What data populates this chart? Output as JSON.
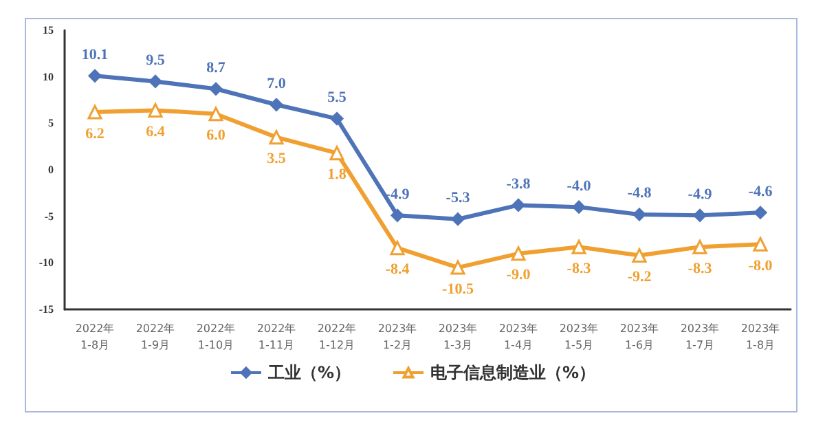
{
  "chart_data": {
    "type": "line",
    "categories": [
      "2022年\n1-8月",
      "2022年\n1-9月",
      "2022年\n1-10月",
      "2022年\n1-11月",
      "2022年\n1-12月",
      "2023年\n1-2月",
      "2023年\n1-3月",
      "2023年\n1-4月",
      "2023年\n1-5月",
      "2023年\n1-6月",
      "2023年\n1-7月",
      "2023年\n1-8月"
    ],
    "series": [
      {
        "name": "工业（%）",
        "color": "#4e73b8",
        "marker": "diamond",
        "values": [
          10.1,
          9.5,
          8.7,
          7.0,
          5.5,
          -4.9,
          -5.3,
          -3.8,
          -4.0,
          -4.8,
          -4.9,
          -4.6
        ],
        "value_labels": [
          "10.1",
          "9.5",
          "8.7",
          "7.0",
          "5.5",
          "-4.9",
          "-5.3",
          "-3.8",
          "-4.0",
          "-4.8",
          "-4.9",
          "-4.6"
        ]
      },
      {
        "name": "电子信息制造业（%）",
        "color": "#f0a030",
        "marker": "triangle",
        "values": [
          6.2,
          6.4,
          6.0,
          3.5,
          1.8,
          -8.4,
          -10.5,
          -9.0,
          -8.3,
          -9.2,
          -8.3,
          -8.0
        ],
        "value_labels": [
          "6.2",
          "6.4",
          "6.0",
          "3.5",
          "1.8",
          "-8.4",
          "-10.5",
          "-9.0",
          "-8.3",
          "-9.2",
          "-8.3",
          "-8.0"
        ]
      }
    ],
    "ylim": [
      -15,
      15
    ],
    "yticks": [
      -15,
      -10,
      -5,
      0,
      5,
      10,
      15
    ],
    "grid": false,
    "legend": "bottom",
    "line_style": "solid"
  }
}
